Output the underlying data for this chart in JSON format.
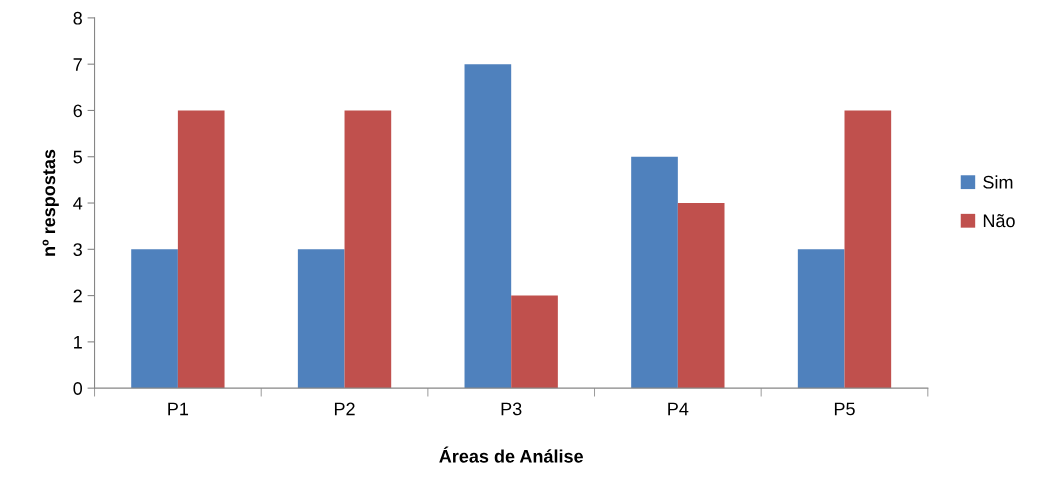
{
  "chart_data": {
    "type": "bar",
    "xlabel": "Áreas de Análise",
    "ylabel": "nº respostas",
    "categories": [
      "P1",
      "P2",
      "P3",
      "P4",
      "P5"
    ],
    "series": [
      {
        "name": "Sim",
        "color": "#4f81bd",
        "values": [
          3,
          3,
          7,
          5,
          3
        ]
      },
      {
        "name": "Não",
        "color": "#c0504d",
        "values": [
          6,
          6,
          2,
          4,
          6
        ]
      }
    ],
    "ylim": [
      0,
      8
    ],
    "yticks": [
      0,
      1,
      2,
      3,
      4,
      5,
      6,
      7,
      8
    ],
    "grid": false,
    "legend": "right"
  }
}
